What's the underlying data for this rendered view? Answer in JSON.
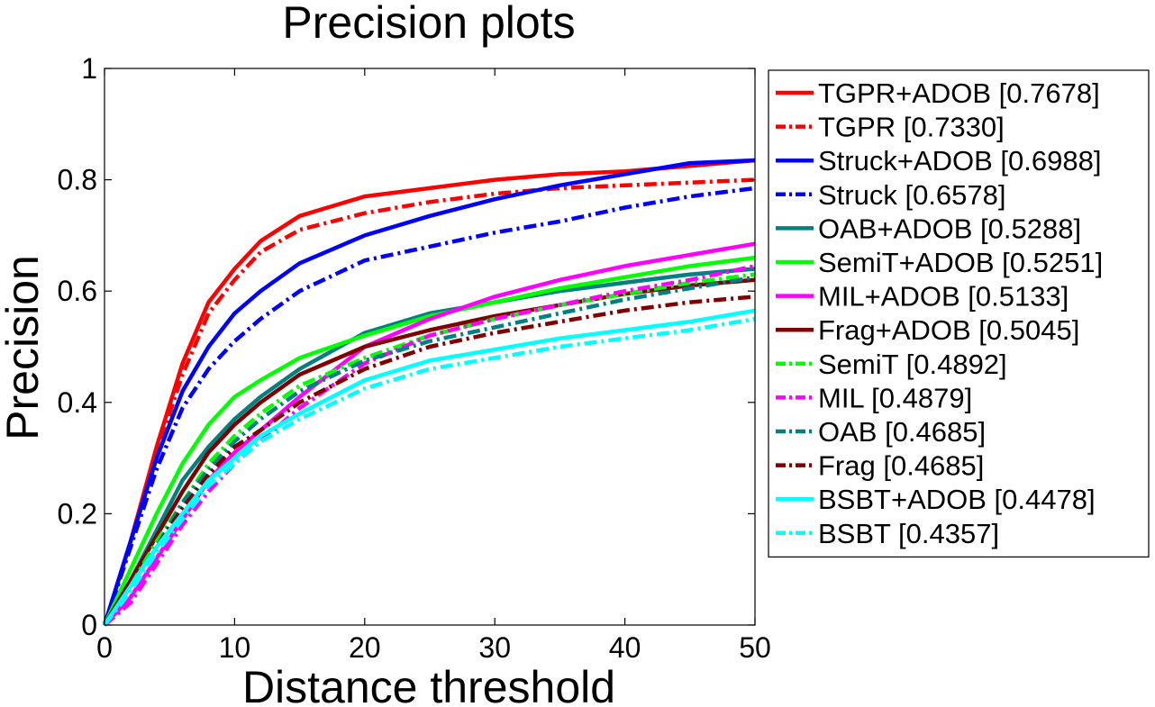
{
  "chart_data": {
    "type": "line",
    "title": "Precision plots",
    "xlabel": "Distance threshold",
    "ylabel": "Precision",
    "xlim": [
      0,
      50
    ],
    "ylim": [
      0,
      1
    ],
    "xticks": [
      0,
      10,
      20,
      30,
      40,
      50
    ],
    "yticks": [
      0,
      0.2,
      0.4,
      0.6,
      0.8,
      1
    ],
    "ytick_labels": [
      "0",
      "0.2",
      "0.4",
      "0.6",
      "0.8",
      "1"
    ],
    "grid": false,
    "legend_position": "outside-right",
    "x": [
      0,
      2,
      4,
      6,
      8,
      10,
      12,
      15,
      20,
      25,
      30,
      35,
      40,
      45,
      50
    ],
    "series": [
      {
        "name": "TGPR+ADOB [0.7678]",
        "color": "#ff0000",
        "style": "solid",
        "values": [
          0,
          0.15,
          0.32,
          0.47,
          0.58,
          0.64,
          0.69,
          0.735,
          0.77,
          0.785,
          0.8,
          0.81,
          0.815,
          0.825,
          0.835
        ]
      },
      {
        "name": "TGPR [0.7330]",
        "color": "#ff0000",
        "style": "dashdot",
        "values": [
          0,
          0.14,
          0.31,
          0.45,
          0.56,
          0.62,
          0.67,
          0.71,
          0.74,
          0.76,
          0.775,
          0.785,
          0.79,
          0.795,
          0.8
        ]
      },
      {
        "name": "Struck+ADOB [0.6988]",
        "color": "#0000ff",
        "style": "solid",
        "values": [
          0,
          0.15,
          0.3,
          0.42,
          0.5,
          0.56,
          0.6,
          0.65,
          0.7,
          0.735,
          0.765,
          0.79,
          0.81,
          0.83,
          0.835
        ]
      },
      {
        "name": "Struck [0.6578]",
        "color": "#0000ff",
        "style": "dashdot",
        "values": [
          0,
          0.14,
          0.28,
          0.39,
          0.46,
          0.51,
          0.55,
          0.6,
          0.655,
          0.68,
          0.705,
          0.725,
          0.75,
          0.77,
          0.785
        ]
      },
      {
        "name": "OAB+ADOB [0.5288]",
        "color": "#008080",
        "style": "solid",
        "values": [
          0,
          0.08,
          0.17,
          0.26,
          0.32,
          0.37,
          0.41,
          0.46,
          0.525,
          0.56,
          0.58,
          0.6,
          0.615,
          0.63,
          0.64
        ]
      },
      {
        "name": "SemiT+ADOB [0.5251]",
        "color": "#00ff00",
        "style": "solid",
        "values": [
          0,
          0.1,
          0.2,
          0.29,
          0.36,
          0.41,
          0.44,
          0.48,
          0.52,
          0.555,
          0.58,
          0.605,
          0.625,
          0.645,
          0.66
        ]
      },
      {
        "name": "MIL+ADOB [0.5133]",
        "color": "#ff00ff",
        "style": "solid",
        "values": [
          0,
          0.05,
          0.12,
          0.19,
          0.26,
          0.31,
          0.35,
          0.41,
          0.5,
          0.55,
          0.59,
          0.62,
          0.645,
          0.665,
          0.685
        ]
      },
      {
        "name": "Frag+ADOB [0.5045]",
        "color": "#800000",
        "style": "solid",
        "values": [
          0,
          0.08,
          0.16,
          0.24,
          0.31,
          0.36,
          0.4,
          0.45,
          0.5,
          0.53,
          0.555,
          0.575,
          0.595,
          0.61,
          0.62
        ]
      },
      {
        "name": "SemiT [0.4892]",
        "color": "#00ff00",
        "style": "dashdot",
        "values": [
          0,
          0.07,
          0.15,
          0.22,
          0.29,
          0.34,
          0.38,
          0.43,
          0.48,
          0.52,
          0.55,
          0.575,
          0.595,
          0.615,
          0.63
        ]
      },
      {
        "name": "MIL [0.4879]",
        "color": "#ff00ff",
        "style": "dashdot",
        "values": [
          0,
          0.04,
          0.11,
          0.18,
          0.24,
          0.29,
          0.33,
          0.39,
          0.47,
          0.52,
          0.55,
          0.575,
          0.6,
          0.62,
          0.645
        ]
      },
      {
        "name": "OAB [0.4685]",
        "color": "#008080",
        "style": "dashdot",
        "values": [
          0,
          0.07,
          0.14,
          0.22,
          0.28,
          0.33,
          0.37,
          0.42,
          0.475,
          0.51,
          0.535,
          0.56,
          0.585,
          0.605,
          0.625
        ]
      },
      {
        "name": "Frag [0.4685]",
        "color": "#800000",
        "style": "dashdot",
        "values": [
          0,
          0.07,
          0.14,
          0.21,
          0.27,
          0.32,
          0.35,
          0.4,
          0.46,
          0.5,
          0.525,
          0.545,
          0.565,
          0.58,
          0.59
        ]
      },
      {
        "name": "BSBT+ADOB [0.4478]",
        "color": "#00ffff",
        "style": "solid",
        "values": [
          0,
          0.07,
          0.14,
          0.2,
          0.26,
          0.3,
          0.34,
          0.38,
          0.44,
          0.475,
          0.495,
          0.515,
          0.53,
          0.545,
          0.565
        ]
      },
      {
        "name": "BSBT [0.4357]",
        "color": "#00ffff",
        "style": "dashdot",
        "values": [
          0,
          0.06,
          0.13,
          0.19,
          0.25,
          0.29,
          0.33,
          0.37,
          0.425,
          0.46,
          0.48,
          0.5,
          0.515,
          0.53,
          0.55
        ]
      }
    ]
  }
}
